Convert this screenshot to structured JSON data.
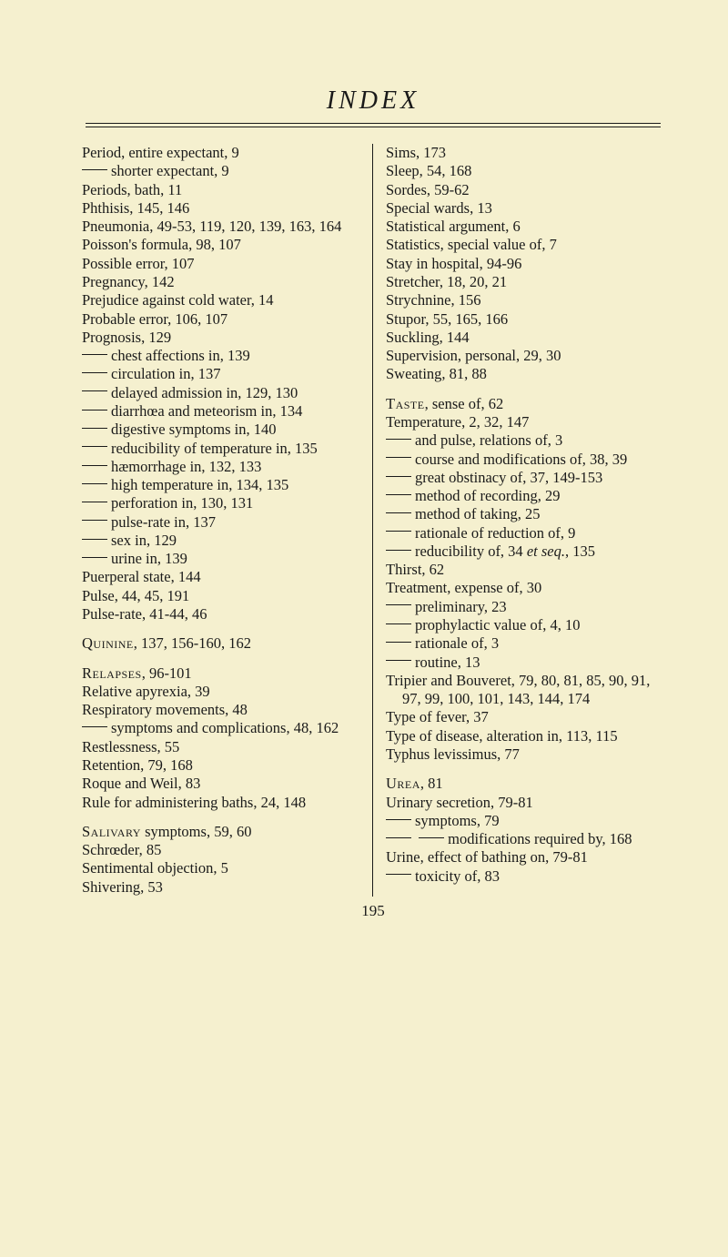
{
  "title": "INDEX",
  "page_number": "195",
  "left": {
    "e0": "Period, entire expectant, 9",
    "e1": "shorter expectant, 9",
    "e2": "Periods, bath, 11",
    "e3": "Phthisis, 145, 146",
    "e4": "Pneumonia, 49-53, 119, 120, 139, 163, 164",
    "e5": "Poisson's formula, 98, 107",
    "e6": "Possible error, 107",
    "e7": "Pregnancy, 142",
    "e8": "Prejudice against cold water, 14",
    "e9": "Probable error, 106, 107",
    "e10": "Prognosis, 129",
    "e11": "chest affections in, 139",
    "e12": "circulation in, 137",
    "e13": "delayed admission in, 129, 130",
    "e14": "diarrhœa and meteorism in, 134",
    "e15": "digestive symptoms in, 140",
    "e16": "reducibility of temperature in, 135",
    "e17": "hæmorrhage in, 132, 133",
    "e18": "high temperature in, 134, 135",
    "e19": "perforation in, 130, 131",
    "e20": "pulse-rate in, 137",
    "e21": "sex in, 129",
    "e22": "urine in, 139",
    "e23": "Puerperal state, 144",
    "e24": "Pulse, 44, 45, 191",
    "e25": "Pulse-rate, 41-44, 46",
    "e26a": "Quinine",
    "e26b": ", 137, 156-160, 162",
    "e27a": "Relapses",
    "e27b": ", 96-101",
    "e28": "Relative apyrexia, 39",
    "e29": "Respiratory movements, 48",
    "e30": "symptoms and complications, 48, 162",
    "e31": "Restlessness, 55",
    "e32": "Retention, 79, 168",
    "e33": "Roque and Weil, 83",
    "e34": "Rule for administering baths, 24, 148",
    "e35a": "Salivary",
    "e35b": " symptoms, 59, 60",
    "e36": "Schrœder, 85",
    "e37": "Sentimental objection, 5",
    "e38": "Shivering, 53"
  },
  "right": {
    "e0": "Sims, 173",
    "e1": "Sleep, 54, 168",
    "e2": "Sordes, 59-62",
    "e3": "Special wards, 13",
    "e4": "Statistical argument, 6",
    "e5": "Statistics, special value of, 7",
    "e6": "Stay in hospital, 94-96",
    "e7": "Stretcher, 18, 20, 21",
    "e8": "Strychnine, 156",
    "e9": "Stupor, 55, 165, 166",
    "e10": "Suckling, 144",
    "e11": "Supervision, personal, 29, 30",
    "e12": "Sweating, 81, 88",
    "e13a": "Taste",
    "e13b": ", sense of, 62",
    "e14": "Temperature, 2, 32, 147",
    "e15": "and pulse, relations of, 3",
    "e16": "course and modifications of, 38, 39",
    "e17": "great obstinacy of, 37, 149-153",
    "e18": "method of recording, 29",
    "e19": "method of taking, 25",
    "e20": "rationale of reduction of, 9",
    "e21a": "reducibility of, 34 ",
    "e21b": "et seq.",
    "e21c": ", 135",
    "e22": "Thirst, 62",
    "e23": "Treatment, expense of, 30",
    "e24": "preliminary, 23",
    "e25": "prophylactic value of, 4, 10",
    "e26": "rationale of, 3",
    "e27": "routine, 13",
    "e28": "Tripier and Bouveret, 79, 80, 81, 85, 90, 91, 97, 99, 100, 101, 143, 144, 174",
    "e29": "Type of fever, 37",
    "e30": "Type of disease, alteration in, 113, 115",
    "e31": "Typhus levissimus, 77",
    "e32a": "Urea",
    "e32b": ", 81",
    "e33": "Urinary secretion, 79-81",
    "e34": "symptoms, 79",
    "e35": "modifications required by, 168",
    "e36": "Urine, effect of bathing on, 79-81",
    "e37": "toxicity of, 83"
  }
}
